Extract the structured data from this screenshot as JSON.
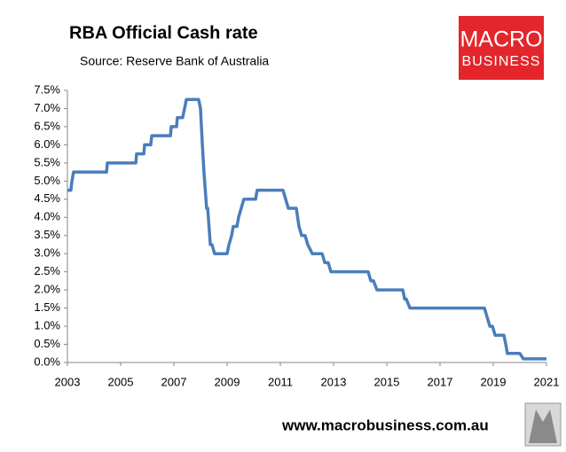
{
  "chart_data": {
    "type": "line",
    "title": "RBA Official Cash rate",
    "subtitle": "Source: Reserve Bank of Australia",
    "logo": {
      "line1": "MACRO",
      "line2": "BUSINESS"
    },
    "footer": "www.macrobusiness.com.au",
    "color": "#4a7ebb",
    "grid": false,
    "x": [
      2003,
      2003.13,
      2003.17,
      2003.23,
      2004.47,
      2004.5,
      2005.57,
      2005.6,
      2005.87,
      2005.9,
      2006.13,
      2006.17,
      2006.87,
      2006.9,
      2007.1,
      2007.13,
      2007.33,
      2007.4,
      2007.47,
      2007.93,
      2008.0,
      2008.07,
      2008.13,
      2008.23,
      2008.27,
      2008.37,
      2008.43,
      2008.53,
      2009.0,
      2009.07,
      2009.17,
      2009.23,
      2009.37,
      2009.43,
      2009.53,
      2009.63,
      2010.07,
      2010.13,
      2011.1,
      2011.2,
      2011.3,
      2011.6,
      2011.7,
      2011.8,
      2011.93,
      2012.03,
      2012.2,
      2012.57,
      2012.67,
      2012.8,
      2012.9,
      2014.3,
      2014.4,
      2014.5,
      2014.63,
      2015.6,
      2015.67,
      2015.73,
      2015.87,
      2018.67,
      2018.77,
      2018.87,
      2018.97,
      2019.07,
      2019.4,
      2019.47,
      2019.53,
      2020.0,
      2020.13,
      2021
    ],
    "values": [
      4.75,
      4.75,
      5.0,
      5.25,
      5.25,
      5.5,
      5.5,
      5.75,
      5.75,
      6.0,
      6.0,
      6.25,
      6.25,
      6.5,
      6.5,
      6.75,
      6.75,
      7.0,
      7.25,
      7.25,
      7.0,
      6.0,
      5.25,
      4.25,
      4.25,
      3.25,
      3.25,
      3.0,
      3.0,
      3.25,
      3.5,
      3.75,
      3.75,
      4.0,
      4.25,
      4.5,
      4.5,
      4.75,
      4.75,
      4.5,
      4.25,
      4.25,
      3.75,
      3.5,
      3.5,
      3.25,
      3.0,
      3.0,
      2.75,
      2.75,
      2.5,
      2.5,
      2.25,
      2.25,
      2.0,
      2.0,
      1.75,
      1.75,
      1.5,
      1.5,
      1.25,
      1.0,
      1.0,
      0.75,
      0.75,
      0.5,
      0.25,
      0.25,
      0.1,
      0.1
    ],
    "xlim": [
      2003,
      2021
    ],
    "xticks": [
      2003,
      2005,
      2007,
      2009,
      2011,
      2013,
      2015,
      2017,
      2019,
      2021
    ],
    "ylim": [
      0,
      7.5
    ],
    "yticks": [
      {
        "value": 0,
        "label": "0.0%"
      },
      {
        "value": 0.5,
        "label": "0.5%"
      },
      {
        "value": 1.0,
        "label": "1.0%"
      },
      {
        "value": 1.5,
        "label": "1.5%"
      },
      {
        "value": 2.0,
        "label": "2.0%"
      },
      {
        "value": 2.5,
        "label": "2.5%"
      },
      {
        "value": 3.0,
        "label": "3.0%"
      },
      {
        "value": 3.5,
        "label": "3.5%"
      },
      {
        "value": 4.0,
        "label": "4.0%"
      },
      {
        "value": 4.5,
        "label": "4.5%"
      },
      {
        "value": 5.0,
        "label": "5.0%"
      },
      {
        "value": 5.5,
        "label": "5.5%"
      },
      {
        "value": 6.0,
        "label": "6.0%"
      },
      {
        "value": 6.5,
        "label": "6.5%"
      },
      {
        "value": 7.0,
        "label": "7.0%"
      },
      {
        "value": 7.5,
        "label": "7.5%"
      }
    ]
  }
}
